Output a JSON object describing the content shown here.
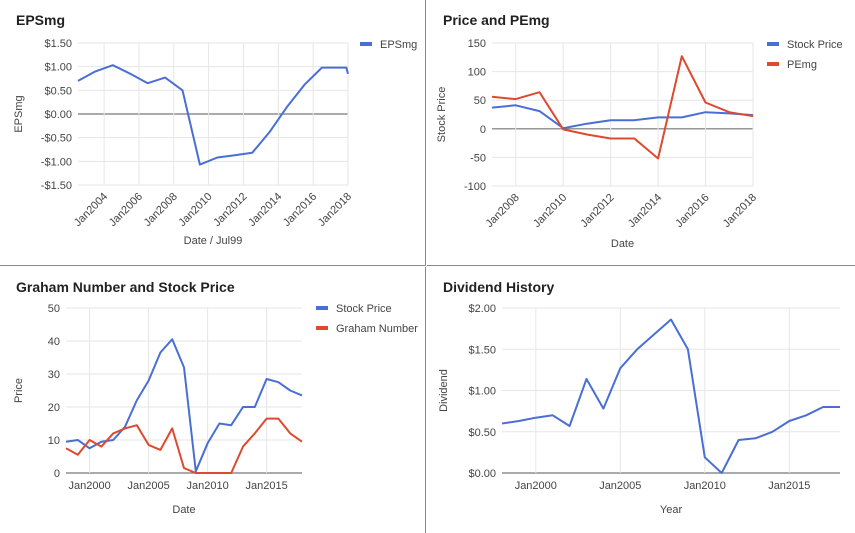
{
  "colors": {
    "blue": "#4a6fd4",
    "red": "#dc4a2f",
    "grid": "#e6e6e6",
    "zero": "#777777",
    "text": "#444444"
  },
  "chart_data": [
    {
      "id": "eps",
      "type": "line",
      "title": "EPSmg",
      "xlabel": "Date / Jul99",
      "ylabel": "EPSmg",
      "ylim": [
        -1.5,
        1.5
      ],
      "yticks": [
        1.5,
        1.0,
        0.5,
        0.0,
        -0.5,
        -1.0,
        -1.5
      ],
      "ytick_labels": [
        "$1.50",
        "$1.00",
        "$0.50",
        "$0.00",
        "-$0.50",
        "-$1.00",
        "-$1.50"
      ],
      "xlim": [
        2002.5,
        2018.0
      ],
      "xticks": [
        2004,
        2006,
        2008,
        2010,
        2012,
        2014,
        2016,
        2018
      ],
      "xtick_labels": [
        "Jan2004",
        "Jan2006",
        "Jan2008",
        "Jan2010",
        "Jan2012",
        "Jan2014",
        "Jan2016",
        "Jan2018"
      ],
      "legend": "top-right",
      "series": [
        {
          "name": "EPSmg",
          "color": "blue",
          "x": [
            2002.5,
            2003.5,
            2004.5,
            2005.5,
            2006.5,
            2007.5,
            2008.5,
            2009.5,
            2010.5,
            2011.5,
            2012.5,
            2013.5,
            2014.5,
            2015.5,
            2016.5,
            2017.5,
            2017.9,
            2018.0
          ],
          "y": [
            0.7,
            0.9,
            1.03,
            0.85,
            0.65,
            0.77,
            0.5,
            -1.07,
            -0.92,
            -0.87,
            -0.82,
            -0.38,
            0.15,
            0.62,
            0.98,
            0.98,
            0.98,
            0.85
          ]
        }
      ]
    },
    {
      "id": "price-pe",
      "type": "line",
      "title": "Price and PEmg",
      "xlabel": "Date",
      "ylabel": "Stock Price",
      "ylim": [
        -100,
        150
      ],
      "yticks": [
        150,
        100,
        50,
        0,
        -50,
        -100
      ],
      "ytick_labels": [
        "150",
        "100",
        "50",
        "0",
        "-50",
        "-100"
      ],
      "xlim": [
        2007.0,
        2018.0
      ],
      "xticks": [
        2008,
        2010,
        2012,
        2014,
        2016,
        2018
      ],
      "xtick_labels": [
        "Jan2008",
        "Jan2010",
        "Jan2012",
        "Jan2014",
        "Jan2016",
        "Jan2018"
      ],
      "legend": "top-right",
      "series": [
        {
          "name": "Stock Price",
          "color": "blue",
          "x": [
            2007.0,
            2008.0,
            2009.0,
            2010.0,
            2011.0,
            2012.0,
            2013.0,
            2014.0,
            2015.0,
            2016.0,
            2017.0,
            2018.0
          ],
          "y": [
            37,
            41,
            31,
            1,
            9,
            15,
            15,
            20,
            20,
            29,
            27,
            24
          ]
        },
        {
          "name": "PEmg",
          "color": "red",
          "x": [
            2007.0,
            2008.0,
            2009.0,
            2010.0,
            2011.0,
            2012.0,
            2013.0,
            2014.0,
            2015.0,
            2016.0,
            2017.0,
            2018.0
          ],
          "y": [
            56,
            52,
            64,
            -1,
            -10,
            -17,
            -17,
            -52,
            127,
            46,
            29,
            22
          ]
        }
      ]
    },
    {
      "id": "graham",
      "type": "line",
      "title": "Graham Number and Stock Price",
      "xlabel": "Date",
      "ylabel": "Price",
      "ylim": [
        0,
        50
      ],
      "yticks": [
        50,
        40,
        30,
        20,
        10,
        0
      ],
      "ytick_labels": [
        "50",
        "40",
        "30",
        "20",
        "10",
        "0"
      ],
      "xlim": [
        1998.0,
        2018.0
      ],
      "xticks": [
        2000,
        2005,
        2010,
        2015
      ],
      "xtick_labels": [
        "Jan2000",
        "Jan2005",
        "Jan2010",
        "Jan2015"
      ],
      "legend": "top-right",
      "series": [
        {
          "name": "Stock Price",
          "color": "blue",
          "x": [
            1998.0,
            1999.0,
            2000.0,
            2001.0,
            2002.0,
            2003.0,
            2004.0,
            2005.0,
            2006.0,
            2007.0,
            2008.0,
            2009.0,
            2010.0,
            2011.0,
            2012.0,
            2013.0,
            2014.0,
            2015.0,
            2016.0,
            2017.0,
            2018.0
          ],
          "y": [
            9.5,
            10,
            7.5,
            9.5,
            10,
            14,
            22,
            28,
            36.5,
            40.5,
            32,
            0.5,
            9,
            15,
            14.5,
            20,
            20,
            28.5,
            27.5,
            25,
            23.5
          ]
        },
        {
          "name": "Graham Number",
          "color": "red",
          "x": [
            1998.0,
            1999.0,
            2000.0,
            2001.0,
            2002.0,
            2003.0,
            2004.0,
            2005.0,
            2006.0,
            2007.0,
            2008.0,
            2009.0,
            2010.0,
            2011.0,
            2012.0,
            2013.0,
            2014.0,
            2015.0,
            2016.0,
            2017.0,
            2018.0
          ],
          "y": [
            7.5,
            5.5,
            10,
            8,
            12,
            13.5,
            14.5,
            8.5,
            7,
            13.5,
            1.5,
            0,
            0,
            0,
            0,
            8,
            12,
            16.5,
            16.5,
            12,
            9.5
          ]
        }
      ]
    },
    {
      "id": "dividend",
      "type": "line",
      "title": "Dividend History",
      "xlabel": "Year",
      "ylabel": "Dividend",
      "ylim": [
        0,
        2.0
      ],
      "yticks": [
        2.0,
        1.5,
        1.0,
        0.5,
        0.0
      ],
      "ytick_labels": [
        "$2.00",
        "$1.50",
        "$1.00",
        "$0.50",
        "$0.00"
      ],
      "xlim": [
        1998.0,
        2018.0
      ],
      "xticks": [
        2000,
        2005,
        2010,
        2015
      ],
      "xtick_labels": [
        "Jan2000",
        "Jan2005",
        "Jan2010",
        "Jan2015"
      ],
      "legend": "none",
      "series": [
        {
          "name": "",
          "color": "blue",
          "x": [
            1998.0,
            1999.0,
            2000.0,
            2001.0,
            2002.0,
            2003.0,
            2004.0,
            2005.0,
            2006.0,
            2007.0,
            2008.0,
            2009.0,
            2010.0,
            2011.0,
            2012.0,
            2013.0,
            2014.0,
            2015.0,
            2016.0,
            2017.0,
            2018.0
          ],
          "y": [
            0.6,
            0.63,
            0.67,
            0.7,
            0.57,
            1.14,
            0.78,
            1.27,
            1.5,
            1.68,
            1.86,
            1.5,
            0.19,
            0.0,
            0.4,
            0.42,
            0.5,
            0.63,
            0.7,
            0.8,
            0.8
          ]
        }
      ]
    }
  ]
}
